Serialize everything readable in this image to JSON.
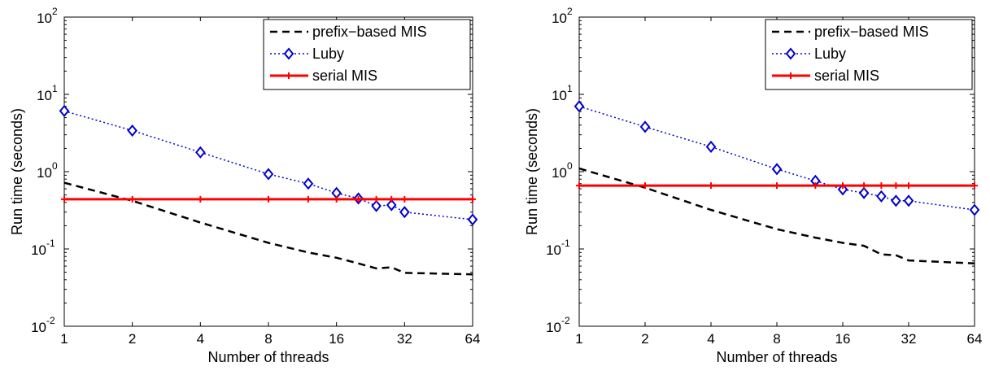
{
  "chart_data": [
    {
      "type": "line",
      "title": "",
      "xlabel": "Number of threads",
      "ylabel": "Run time (seconds)",
      "xscale": "log2",
      "yscale": "log10",
      "xlim": [
        1,
        64
      ],
      "ylim": [
        0.01,
        100
      ],
      "xticks": [
        "1",
        "2",
        "4",
        "8",
        "16",
        "32",
        "64"
      ],
      "yticks": [
        {
          "base": "10",
          "exp": "-2"
        },
        {
          "base": "10",
          "exp": "-1"
        },
        {
          "base": "10",
          "exp": "0"
        },
        {
          "base": "10",
          "exp": "1"
        },
        {
          "base": "10",
          "exp": "2"
        }
      ],
      "grid": false,
      "legend_position": "top-right",
      "series": [
        {
          "name": "prefix−based MIS",
          "style": "dashed",
          "color": "#000000",
          "marker": "none",
          "x": [
            1,
            2,
            4,
            8,
            12,
            16,
            20,
            24,
            28,
            32,
            64
          ],
          "y": [
            0.72,
            0.42,
            0.22,
            0.12,
            0.09,
            0.077,
            0.065,
            0.056,
            0.058,
            0.049,
            0.047
          ]
        },
        {
          "name": "Luby",
          "style": "dotted",
          "color": "#0000cc",
          "marker": "diamond",
          "x": [
            1,
            2,
            4,
            8,
            12,
            16,
            20,
            24,
            28,
            32,
            64
          ],
          "y": [
            6.1,
            3.4,
            1.78,
            0.93,
            0.7,
            0.53,
            0.45,
            0.36,
            0.37,
            0.3,
            0.24
          ]
        },
        {
          "name": "serial MIS",
          "style": "solid",
          "color": "#ff0000",
          "marker": "plus",
          "x": [
            1,
            2,
            4,
            8,
            12,
            16,
            20,
            24,
            28,
            32,
            64
          ],
          "y": [
            0.44,
            0.44,
            0.44,
            0.44,
            0.44,
            0.44,
            0.44,
            0.44,
            0.44,
            0.44,
            0.44
          ]
        }
      ]
    },
    {
      "type": "line",
      "title": "",
      "xlabel": "Number of threads",
      "ylabel": "Run time (seconds)",
      "xscale": "log2",
      "yscale": "log10",
      "xlim": [
        1,
        64
      ],
      "ylim": [
        0.01,
        100
      ],
      "xticks": [
        "1",
        "2",
        "4",
        "8",
        "16",
        "32",
        "64"
      ],
      "yticks": [
        {
          "base": "10",
          "exp": "-2"
        },
        {
          "base": "10",
          "exp": "-1"
        },
        {
          "base": "10",
          "exp": "0"
        },
        {
          "base": "10",
          "exp": "1"
        },
        {
          "base": "10",
          "exp": "2"
        }
      ],
      "grid": false,
      "legend_position": "top-right",
      "series": [
        {
          "name": "prefix−based MIS",
          "style": "dashed",
          "color": "#000000",
          "marker": "none",
          "x": [
            1,
            2,
            4,
            8,
            12,
            16,
            20,
            24,
            28,
            32,
            64
          ],
          "y": [
            1.1,
            0.62,
            0.32,
            0.18,
            0.14,
            0.12,
            0.11,
            0.085,
            0.083,
            0.071,
            0.065
          ]
        },
        {
          "name": "Luby",
          "style": "dotted",
          "color": "#0000cc",
          "marker": "diamond",
          "x": [
            1,
            2,
            4,
            8,
            12,
            16,
            20,
            24,
            28,
            32,
            64
          ],
          "y": [
            7.0,
            3.8,
            2.1,
            1.08,
            0.76,
            0.59,
            0.53,
            0.48,
            0.42,
            0.42,
            0.32
          ]
        },
        {
          "name": "serial MIS",
          "style": "solid",
          "color": "#ff0000",
          "marker": "plus",
          "x": [
            1,
            2,
            4,
            8,
            12,
            16,
            20,
            24,
            28,
            32,
            64
          ],
          "y": [
            0.66,
            0.66,
            0.66,
            0.66,
            0.66,
            0.66,
            0.66,
            0.66,
            0.66,
            0.66,
            0.66
          ]
        }
      ]
    }
  ]
}
